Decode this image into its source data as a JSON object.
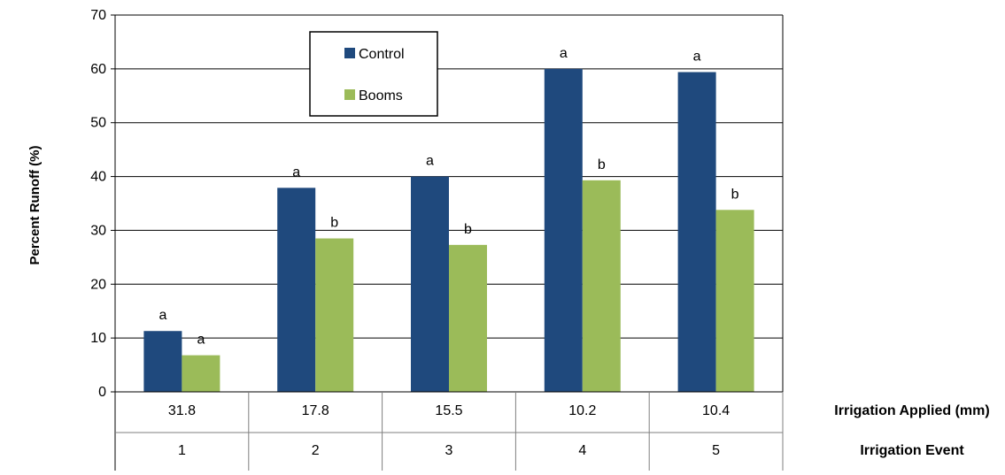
{
  "chart_data": {
    "type": "bar",
    "title": "",
    "ylabel": "Percent Runoff (%)",
    "ylim": [
      0,
      70
    ],
    "yticks": [
      0,
      10,
      20,
      30,
      40,
      50,
      60,
      70
    ],
    "grid": true,
    "legend_position": "top-center",
    "categories": [
      "1",
      "2",
      "3",
      "4",
      "5"
    ],
    "category_rows": [
      {
        "label": "Irrigation Applied (mm)",
        "values": [
          "31.8",
          "17.8",
          "15.5",
          "10.2",
          "10.4"
        ]
      },
      {
        "label": "Irrigation Event",
        "values": [
          "1",
          "2",
          "3",
          "4",
          "5"
        ]
      }
    ],
    "series": [
      {
        "name": "Control",
        "color": "#1f497d",
        "values": [
          11.3,
          37.9,
          40.0,
          60.0,
          59.4
        ],
        "labels": [
          "a",
          "a",
          "a",
          "a",
          "a"
        ]
      },
      {
        "name": "Booms",
        "color": "#9bbb59",
        "values": [
          6.8,
          28.5,
          27.3,
          39.3,
          33.8
        ],
        "labels": [
          "a",
          "b",
          "b",
          "b",
          "b"
        ]
      }
    ]
  }
}
